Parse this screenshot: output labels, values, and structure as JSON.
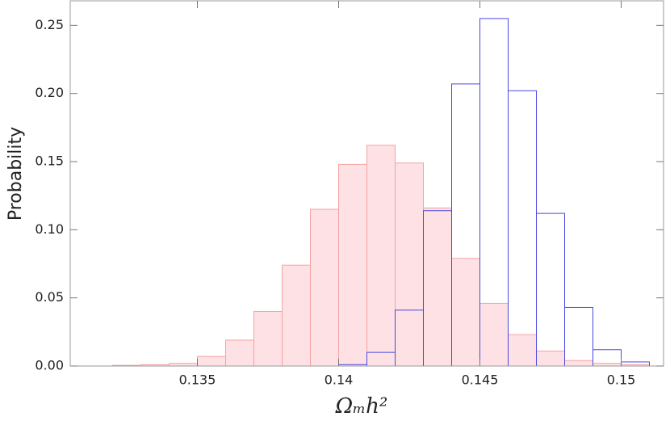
{
  "chart_data": {
    "type": "histogram",
    "x_label": "Ωₘh²",
    "y_label": "Probability",
    "xlim": [
      0.1305,
      0.1515
    ],
    "ylim": [
      0,
      0.268
    ],
    "xticks": [
      0.135,
      0.14,
      0.145,
      0.15
    ],
    "yticks": [
      {
        "value": 0,
        "label": "0.00"
      },
      {
        "value": 0.05,
        "label": "0.05"
      },
      {
        "value": 0.1,
        "label": "0.10"
      },
      {
        "value": 0.15,
        "label": "0.15"
      },
      {
        "value": 0.2,
        "label": "0.20"
      },
      {
        "value": 0.25,
        "label": "0.25"
      }
    ],
    "series": [
      {
        "color": "#f4a3a3",
        "fill": "#fde1e4",
        "bins": [
          0.132,
          0.133,
          0.134,
          0.135,
          0.136,
          0.137,
          0.138,
          0.139,
          0.14,
          0.141,
          0.142,
          0.143,
          0.144,
          0.145,
          0.146,
          0.147,
          0.148,
          0.149,
          0.15,
          0.151
        ],
        "values": [
          0.0005,
          0.001,
          0.002,
          0.007,
          0.019,
          0.04,
          0.074,
          0.115,
          0.148,
          0.162,
          0.149,
          0.116,
          0.079,
          0.046,
          0.023,
          0.011,
          0.004,
          0.002,
          0.001
        ]
      },
      {
        "color": "#4a4ae0",
        "fill": "none",
        "bins": [
          0.14,
          0.141,
          0.142,
          0.143,
          0.144,
          0.145,
          0.146,
          0.147,
          0.148,
          0.149,
          0.15,
          0.151
        ],
        "values": [
          0.001,
          0.01,
          0.041,
          0.114,
          0.207,
          0.255,
          0.202,
          0.112,
          0.043,
          0.012,
          0.003
        ]
      }
    ]
  }
}
